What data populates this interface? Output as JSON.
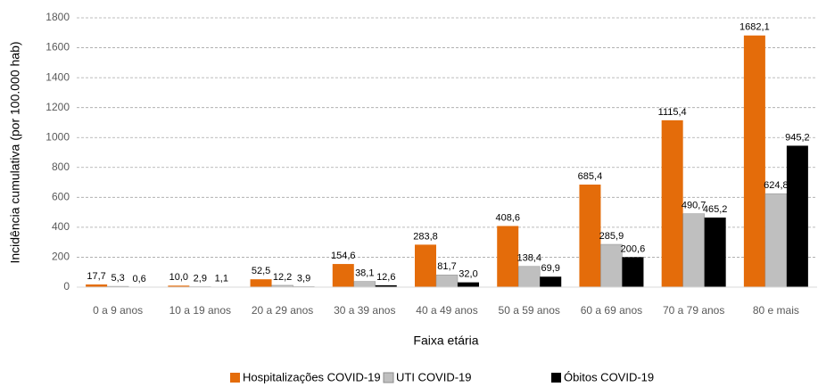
{
  "chart_data": {
    "type": "bar",
    "y_label": "Incidência cumulativa (por 100.000 hab)",
    "x_label": "Faixa etária",
    "categories": [
      "0 a 9 anos",
      "10 a 19 anos",
      "20 a 29 anos",
      "30 a 39 anos",
      "40 a 49 anos",
      "50 a 59 anos",
      "60 a 69 anos",
      "70 a 79 anos",
      "80 e mais"
    ],
    "series": [
      {
        "name": "Hospitalizações COVID-19",
        "color": "#e46c0a",
        "values": [
          17.7,
          10.0,
          52.5,
          154.6,
          283.8,
          408.6,
          685.4,
          1115.4,
          1682.1
        ],
        "value_labels": [
          "17,7",
          "10,0",
          "52,5",
          "154,6",
          "283,8",
          "408,6",
          "685,4",
          "1115,4",
          "1682,1"
        ]
      },
      {
        "name": "UTI COVID-19",
        "color": "#bfbfbf",
        "values": [
          5.3,
          2.9,
          12.2,
          38.1,
          81.7,
          138.4,
          285.9,
          490.7,
          624.8
        ],
        "value_labels": [
          "5,3",
          "2,9",
          "12,2",
          "38,1",
          "81,7",
          "138,4",
          "285,9",
          "490,7",
          "624,8"
        ]
      },
      {
        "name": "Óbitos COVID-19",
        "color": "#000000",
        "values": [
          0.6,
          1.1,
          3.9,
          12.6,
          32.0,
          69.9,
          200.6,
          465.2,
          945.2
        ],
        "value_labels": [
          "0,6",
          "1,1",
          "3,9",
          "12,6",
          "32,0",
          "69,9",
          "200,6",
          "465,2",
          "945,2"
        ]
      }
    ],
    "ylim": [
      0,
      1800
    ],
    "yticks": [
      0,
      200,
      400,
      600,
      800,
      1000,
      1200,
      1400,
      1600,
      1800
    ],
    "grid": true,
    "legend": "bottom"
  }
}
